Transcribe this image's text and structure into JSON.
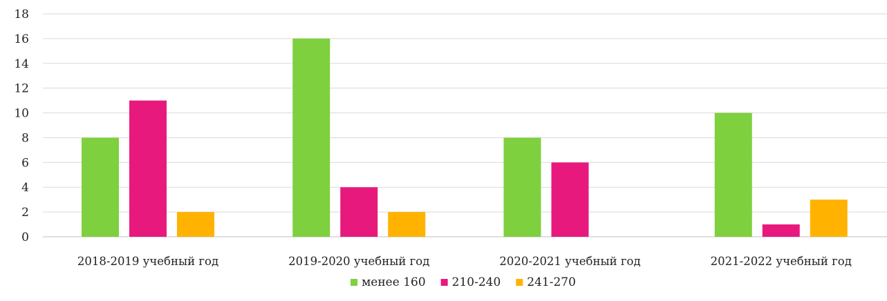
{
  "chart_data": {
    "type": "bar",
    "title": "",
    "xlabel": "",
    "ylabel": "",
    "ylim": [
      0,
      18
    ],
    "yticks": [
      0,
      2,
      4,
      6,
      8,
      10,
      12,
      14,
      16,
      18
    ],
    "grid": true,
    "legend_position": "bottom",
    "categories": [
      "2018-2019 учебный год",
      "2019-2020 учебный год",
      "2020-2021 учебный год",
      "2021-2022 учебный год"
    ],
    "series": [
      {
        "name": "менее 160",
        "color": "#7ED03F",
        "values": [
          8,
          16,
          8,
          10
        ]
      },
      {
        "name": "210-240",
        "color": "#E8197D",
        "values": [
          11,
          4,
          6,
          1
        ]
      },
      {
        "name": "241-270",
        "color": "#FFB300",
        "values": [
          2,
          2,
          0,
          3
        ]
      }
    ]
  }
}
